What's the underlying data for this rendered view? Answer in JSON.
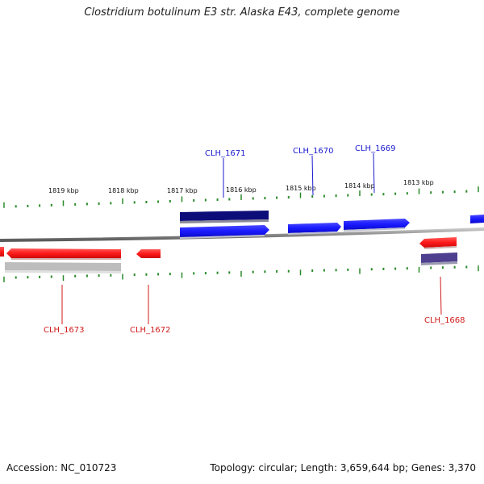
{
  "title": "Clostridium botulinum E3 str. Alaska E43, complete genome",
  "footer": {
    "accession": "Accession: NC_010723",
    "summary": "Topology: circular; Length: 3,659,644 bp; Genes: 3,370"
  },
  "colors": {
    "forward": "#1a1aff",
    "reverse": "#ff1a1a",
    "forward_dark": "#0d0d7a",
    "reverse_dark": "#4f3f8f",
    "pseudo_gray": "#bdbdbd",
    "backbone": "#8a8a8a",
    "ticks": "#2a8a2a",
    "forward_label": "#1a1ad0",
    "reverse_label": "#d01a1a"
  },
  "scale": {
    "unit": "kbp",
    "labels": [
      "1819 kbp",
      "1818 kbp",
      "1817 kbp",
      "1816 kbp",
      "1815 kbp",
      "1814 kbp",
      "1813 kbp"
    ]
  },
  "genes": [
    {
      "label": "CLH_1671",
      "strand": "forward"
    },
    {
      "label": "CLH_1670",
      "strand": "forward"
    },
    {
      "label": "CLH_1669",
      "strand": "forward"
    },
    {
      "label": "CLH_1673",
      "strand": "reverse"
    },
    {
      "label": "CLH_1672",
      "strand": "reverse"
    },
    {
      "label": "CLH_1668",
      "strand": "reverse"
    }
  ]
}
